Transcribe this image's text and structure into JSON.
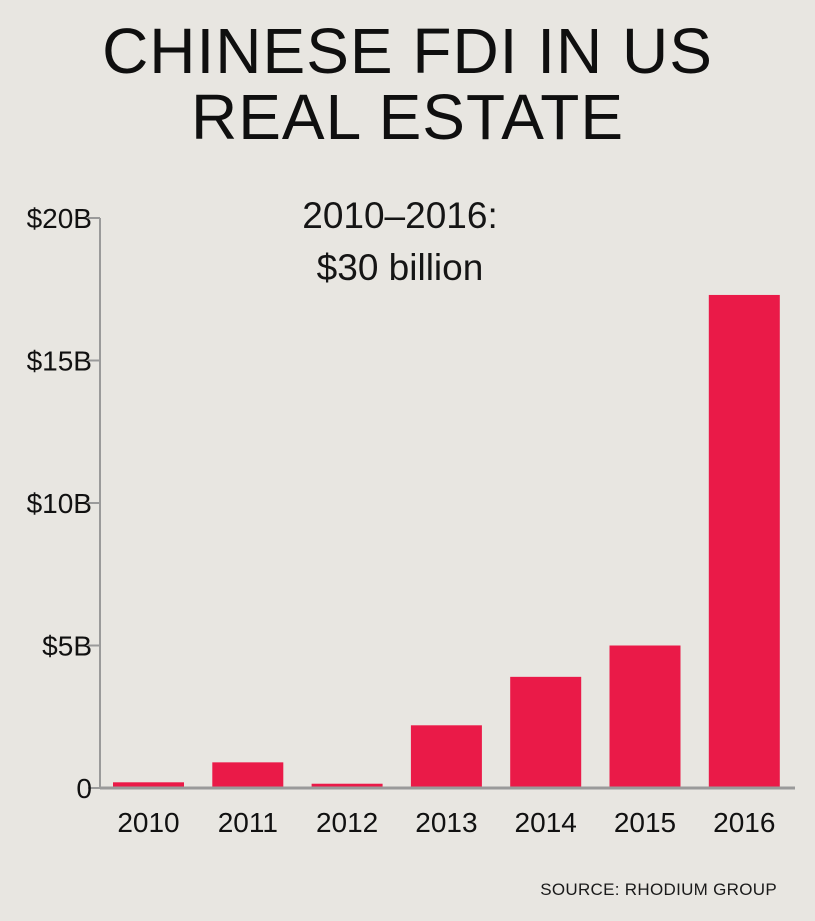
{
  "title_line1": "CHINESE FDI IN US",
  "title_line2": "REAL ESTATE",
  "annotation_line1": "2010–2016:",
  "annotation_line2": "$30 billion",
  "source": "SOURCE: RHODIUM GROUP",
  "colors": {
    "bar": "#ea1a48",
    "axis": "#9a9a9a",
    "background": "#e8e6e1"
  },
  "chart_data": {
    "type": "bar",
    "categories": [
      "2010",
      "2011",
      "2012",
      "2013",
      "2014",
      "2015",
      "2016"
    ],
    "values": [
      0.2,
      0.9,
      0.15,
      2.2,
      3.9,
      5.0,
      17.3
    ],
    "ylim": [
      0,
      20
    ],
    "yticks": [
      0,
      5,
      10,
      15,
      20
    ],
    "ytick_labels": [
      "0",
      "$5B",
      "$10B",
      "$15B",
      "$20B"
    ],
    "grid": false
  }
}
